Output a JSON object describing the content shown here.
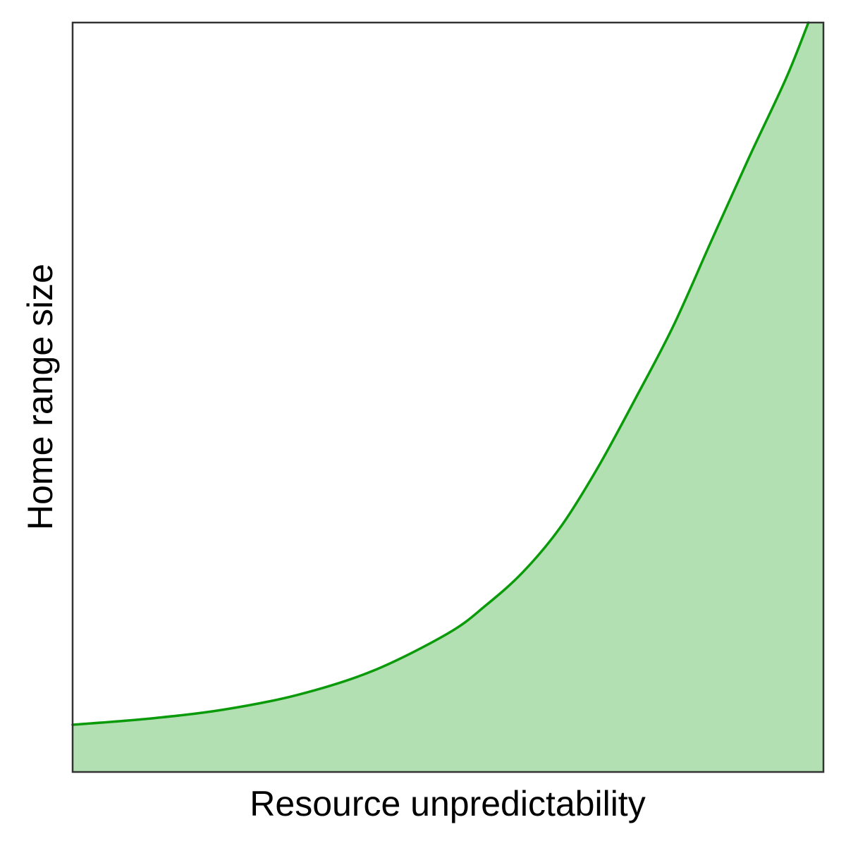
{
  "chart_data": {
    "type": "area",
    "title": "",
    "xlabel": "Resource unpredictability",
    "ylabel": "Home range size",
    "x_ticks": [],
    "y_ticks": [],
    "grid": false,
    "legend": "none",
    "xlim": [
      0,
      1
    ],
    "ylim": [
      0,
      1
    ],
    "series": [
      {
        "x": [
          0.0,
          0.1,
          0.2,
          0.3,
          0.4,
          0.5,
          0.55,
          0.6,
          0.65,
          0.7,
          0.75,
          0.8,
          0.85,
          0.9,
          0.95,
          0.98
        ],
        "y": [
          0.063,
          0.071,
          0.083,
          0.103,
          0.135,
          0.185,
          0.222,
          0.267,
          0.327,
          0.407,
          0.499,
          0.595,
          0.707,
          0.818,
          0.925,
          1.0
        ]
      }
    ],
    "colors": {
      "line": "#0a9a0a",
      "fill": "#b3e0b3",
      "frame": "#333333",
      "background": "#ffffff"
    }
  }
}
